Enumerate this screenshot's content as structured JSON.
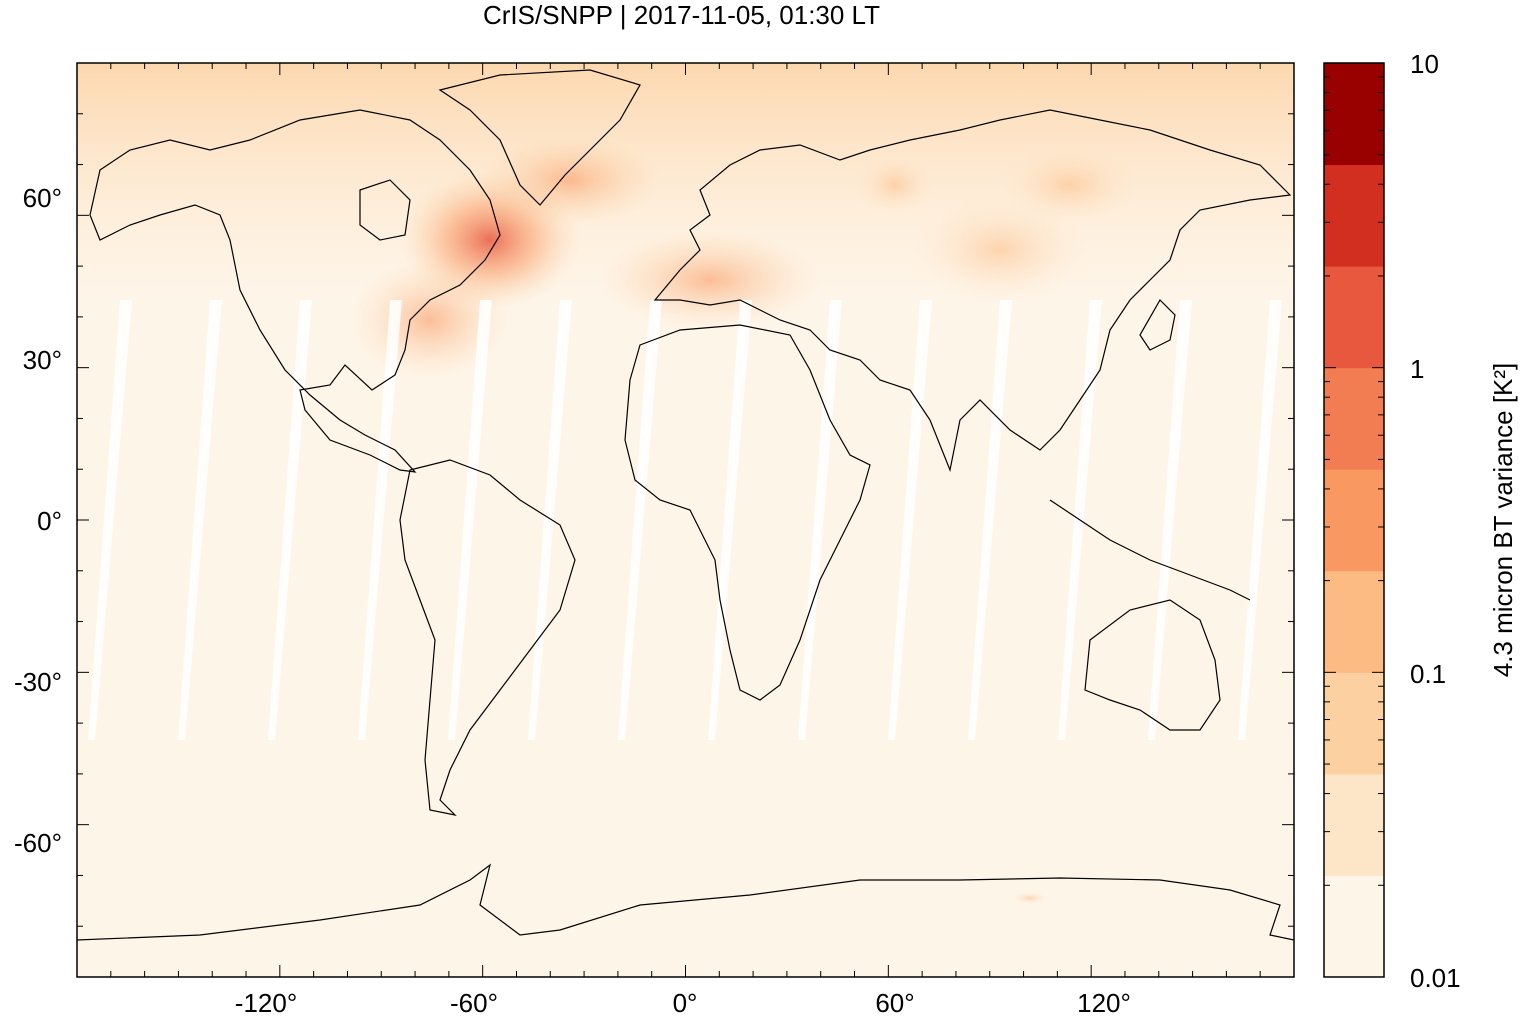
{
  "title": "CrIS/SNPP | 2017-11-05, 01:30 LT",
  "map": {
    "projection": "equirectangular",
    "lon_range": [
      -180,
      180
    ],
    "lat_range": [
      -90,
      90
    ],
    "x_ticks": [
      "-120°",
      "-60°",
      "0°",
      "60°",
      "120°"
    ],
    "y_ticks": [
      "60°",
      "30°",
      "0°",
      "-30°",
      "-60°"
    ],
    "background_color": "#fef5e9",
    "hotspots": [
      {
        "region": "Labrador / Newfoundland",
        "lon": -55,
        "lat": 53,
        "level": "high"
      },
      {
        "region": "Eastern Canada",
        "lon": -65,
        "lat": 48,
        "level": "medium"
      },
      {
        "region": "Western Europe",
        "lon": 0,
        "lat": 48,
        "level": "medium"
      },
      {
        "region": "Central Asia",
        "lon": 95,
        "lat": 52,
        "level": "low"
      },
      {
        "region": "Siberia",
        "lon": 110,
        "lat": 62,
        "level": "low"
      }
    ]
  },
  "colorbar": {
    "label": "4.3 micron BT variance [K²]",
    "scale": "log",
    "range": [
      0.01,
      10
    ],
    "tick_labels": [
      "10",
      "1",
      "0.1",
      "0.01"
    ],
    "colors": [
      "#fef5e9",
      "#fde6c8",
      "#fcd0a0",
      "#fcbb83",
      "#f99860",
      "#f27d52",
      "#e7583f",
      "#d32f20",
      "#990000"
    ]
  }
}
